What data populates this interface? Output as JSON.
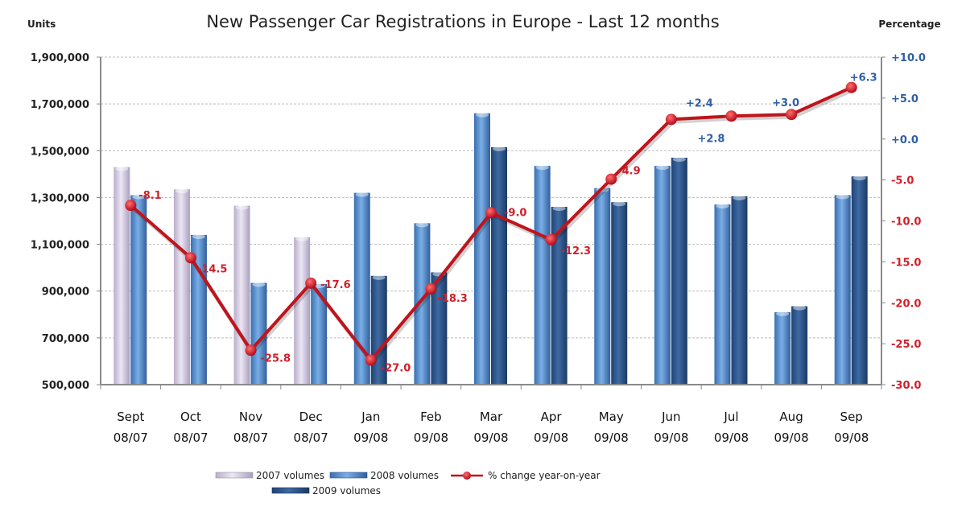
{
  "chart_data": {
    "type": "bar",
    "title": "New Passenger Car Registrations in Europe - Last 12 months",
    "ylabel": "Units",
    "y2label": "Percentage",
    "ylim": [
      500000,
      1900000
    ],
    "y2lim": [
      -30,
      10
    ],
    "yticks": [
      "500,000",
      "700,000",
      "900,000",
      "1,100,000",
      "1,300,000",
      "1,500,000",
      "1,700,000",
      "1,900,000"
    ],
    "ytick_values": [
      500000,
      700000,
      900000,
      1100000,
      1300000,
      1500000,
      1700000,
      1900000
    ],
    "y2ticks": [
      "-30.0",
      "-25.0",
      "-20.0",
      "-15.0",
      "-10.0",
      "-5.0",
      "+0.0",
      "+5.0",
      "+10.0"
    ],
    "y2tick_values": [
      -30,
      -25,
      -20,
      -15,
      -10,
      -5,
      0,
      5,
      10
    ],
    "grid": true,
    "legend_position": "bottom",
    "categories": [
      {
        "line1": "Sept",
        "line2": "08/07"
      },
      {
        "line1": "Oct",
        "line2": "08/07"
      },
      {
        "line1": "Nov",
        "line2": "08/07"
      },
      {
        "line1": "Dec",
        "line2": "08/07"
      },
      {
        "line1": "Jan",
        "line2": "09/08"
      },
      {
        "line1": "Feb",
        "line2": "09/08"
      },
      {
        "line1": "Mar",
        "line2": "09/08"
      },
      {
        "line1": "Apr",
        "line2": "09/08"
      },
      {
        "line1": "May",
        "line2": "09/08"
      },
      {
        "line1": "Jun",
        "line2": "09/08"
      },
      {
        "line1": "Jul",
        "line2": "09/08"
      },
      {
        "line1": "Aug",
        "line2": "09/08"
      },
      {
        "line1": "Sep",
        "line2": "09/08"
      }
    ],
    "series": [
      {
        "name": "2007 volumes",
        "type": "bar",
        "color": "#d8d0e6",
        "values": [
          1430000,
          1335000,
          1265000,
          1130000,
          null,
          null,
          null,
          null,
          null,
          null,
          null,
          null,
          null
        ]
      },
      {
        "name": "2008 volumes",
        "type": "bar",
        "color": "#4f86c6",
        "values": [
          1310000,
          1140000,
          935000,
          930000,
          1320000,
          1190000,
          1660000,
          1435000,
          1340000,
          1435000,
          1270000,
          810000,
          1310000
        ]
      },
      {
        "name": "2009 volumes",
        "type": "bar",
        "color": "#2a5286",
        "values": [
          null,
          null,
          null,
          null,
          965000,
          980000,
          1515000,
          1260000,
          1280000,
          1470000,
          1305000,
          835000,
          1390000
        ]
      },
      {
        "name": "% change year-on-year",
        "type": "line",
        "axis": "right",
        "color": "#c0141c",
        "values": [
          -8.1,
          -14.5,
          -25.8,
          -17.6,
          -27.0,
          -18.3,
          -9.0,
          -12.3,
          -4.9,
          2.4,
          2.8,
          3.0,
          6.3
        ],
        "labels": [
          "-8.1",
          "-14.5",
          "-25.8",
          "-17.6",
          "-27.0",
          "-18.3",
          "-9.0",
          "-12.3",
          "-4.9",
          "+2.4",
          "+2.8",
          "+3.0",
          "+6.3"
        ]
      }
    ],
    "colors": {
      "negative": "#d0202a",
      "positive": "#2e5fa3"
    }
  }
}
